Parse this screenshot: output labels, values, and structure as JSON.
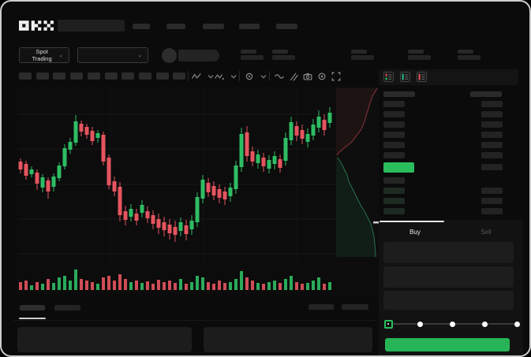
{
  "header": {
    "logo": "OKX"
  },
  "subheader": {
    "market_selector": {
      "label": "Spot Trading",
      "chevron": "⌄"
    },
    "pair_selector": {
      "chevron": "⌄"
    }
  },
  "toolbar": {
    "timeframe_chip_count": 10,
    "icons": [
      "zigzag-icon",
      "chevron-down-icon",
      "zigzag-dot-icon",
      "chevron-down-icon",
      "divider",
      "indicator-circle-icon",
      "chevron-down-icon",
      "divider",
      "wave-icon",
      "compare-lines-icon",
      "camera-icon",
      "settings-gear-icon",
      "fullscreen-icon"
    ]
  },
  "orderbook": {
    "view_toggles": [
      "book-combined-icon",
      "book-bids-icon",
      "book-asks-icon"
    ],
    "ask_row_count": 6,
    "bid_row_count": 4,
    "last_price_highlight_color": "#2abd5e"
  },
  "trade_panel": {
    "tabs": {
      "buy": "Buy",
      "sell": "Sell"
    },
    "form_field_count": 3,
    "slider_stop_count": 5,
    "submit_button_color": "#26b457"
  },
  "colors": {
    "up": "#2ebd64",
    "down": "#e5545f",
    "accent_green": "#26b457",
    "panel_bg": "#131313",
    "bar_placeholder": "#2a2a2a"
  },
  "chart_data": {
    "type": "candlestick",
    "title": "",
    "xlabel": "",
    "ylabel": "",
    "legend": [],
    "gridlines": {
      "horizontal_y": [
        35,
        79,
        124,
        168,
        212
      ],
      "vertical_x": [
        118,
        236,
        354
      ]
    },
    "candles": [
      [
        95,
        105,
        91,
        110,
        "d"
      ],
      [
        98,
        113,
        94,
        118,
        "d"
      ],
      [
        105,
        111,
        101,
        115,
        "u"
      ],
      [
        109,
        123,
        105,
        131,
        "d"
      ],
      [
        115,
        128,
        111,
        134,
        "u"
      ],
      [
        119,
        133,
        115,
        142,
        "d"
      ],
      [
        114,
        127,
        110,
        133,
        "u"
      ],
      [
        100,
        116,
        96,
        120,
        "u"
      ],
      [
        78,
        101,
        73,
        105,
        "u"
      ],
      [
        70,
        80,
        65,
        85,
        "u"
      ],
      [
        44,
        71,
        36,
        75,
        "u"
      ],
      [
        47,
        57,
        43,
        63,
        "d"
      ],
      [
        51,
        61,
        47,
        66,
        "d"
      ],
      [
        56,
        69,
        51,
        74,
        "d"
      ],
      [
        59,
        65,
        55,
        71,
        "u"
      ],
      [
        61,
        95,
        57,
        100,
        "d"
      ],
      [
        90,
        125,
        86,
        130,
        "d"
      ],
      [
        120,
        133,
        114,
        139,
        "d"
      ],
      [
        127,
        163,
        121,
        171,
        "d"
      ],
      [
        158,
        169,
        151,
        176,
        "d"
      ],
      [
        155,
        165,
        149,
        171,
        "u"
      ],
      [
        161,
        170,
        155,
        176,
        "d"
      ],
      [
        150,
        160,
        144,
        166,
        "u"
      ],
      [
        158,
        167,
        152,
        173,
        "d"
      ],
      [
        163,
        174,
        157,
        181,
        "d"
      ],
      [
        168,
        179,
        161,
        187,
        "d"
      ],
      [
        172,
        182,
        165,
        190,
        "d"
      ],
      [
        175,
        186,
        168,
        194,
        "d"
      ],
      [
        178,
        188,
        170,
        197,
        "d"
      ],
      [
        172,
        183,
        166,
        190,
        "u"
      ],
      [
        176,
        187,
        169,
        195,
        "d"
      ],
      [
        170,
        181,
        163,
        188,
        "u"
      ],
      [
        140,
        172,
        134,
        178,
        "u"
      ],
      [
        118,
        142,
        112,
        148,
        "u"
      ],
      [
        122,
        134,
        116,
        140,
        "d"
      ],
      [
        126,
        138,
        120,
        144,
        "d"
      ],
      [
        130,
        141,
        124,
        148,
        "d"
      ],
      [
        133,
        143,
        127,
        150,
        "d"
      ],
      [
        128,
        139,
        122,
        146,
        "u"
      ],
      [
        100,
        130,
        94,
        136,
        "u"
      ],
      [
        60,
        102,
        52,
        108,
        "u"
      ],
      [
        58,
        88,
        50,
        95,
        "d"
      ],
      [
        82,
        95,
        76,
        101,
        "d"
      ],
      [
        86,
        97,
        80,
        104,
        "u"
      ],
      [
        90,
        101,
        84,
        108,
        "d"
      ],
      [
        93,
        104,
        87,
        110,
        "u"
      ],
      [
        88,
        98,
        82,
        105,
        "u"
      ],
      [
        92,
        103,
        86,
        109,
        "d"
      ],
      [
        65,
        94,
        58,
        100,
        "u"
      ],
      [
        45,
        68,
        38,
        74,
        "u"
      ],
      [
        50,
        62,
        44,
        69,
        "d"
      ],
      [
        55,
        66,
        48,
        73,
        "d"
      ],
      [
        60,
        70,
        53,
        77,
        "u"
      ],
      [
        48,
        62,
        41,
        68,
        "u"
      ],
      [
        38,
        52,
        30,
        58,
        "u"
      ],
      [
        42,
        55,
        35,
        62,
        "d"
      ],
      [
        33,
        46,
        26,
        52,
        "u"
      ]
    ],
    "volume": [
      10,
      12,
      6,
      10,
      8,
      14,
      9,
      16,
      18,
      12,
      26,
      14,
      12,
      10,
      8,
      16,
      18,
      12,
      20,
      14,
      10,
      12,
      9,
      11,
      8,
      13,
      10,
      12,
      9,
      14,
      8,
      10,
      18,
      16,
      10,
      8,
      12,
      9,
      10,
      14,
      24,
      16,
      12,
      9,
      8,
      10,
      12,
      9,
      14,
      18,
      10,
      8,
      9,
      12,
      16,
      8,
      10
    ],
    "depth_overlay": {
      "asks_line": [
        [
          456,
          2
        ],
        [
          450,
          12
        ],
        [
          446,
          24
        ],
        [
          443,
          34
        ],
        [
          440,
          44
        ],
        [
          436,
          54
        ],
        [
          430,
          62
        ],
        [
          424,
          70
        ],
        [
          414,
          78
        ],
        [
          407,
          84
        ],
        [
          405,
          87
        ]
      ],
      "bids_line": [
        [
          406,
          90
        ],
        [
          410,
          96
        ],
        [
          414,
          104
        ],
        [
          418,
          112
        ],
        [
          420,
          120
        ],
        [
          424,
          128
        ],
        [
          428,
          136
        ],
        [
          432,
          144
        ],
        [
          436,
          152
        ],
        [
          440,
          158
        ],
        [
          444,
          166
        ],
        [
          448,
          174
        ],
        [
          450,
          182
        ],
        [
          452,
          190
        ],
        [
          453,
          200
        ],
        [
          454,
          210
        ],
        [
          454,
          216
        ]
      ],
      "ask_color": "#e5545f",
      "bid_color": "#3cbe78",
      "last_price_marker_y": 171
    }
  }
}
